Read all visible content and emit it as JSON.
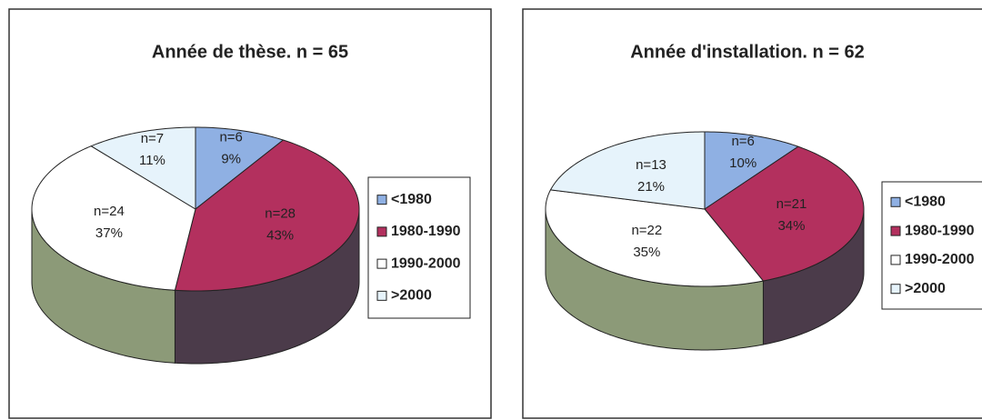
{
  "chart_data": [
    {
      "type": "pie",
      "title": "Année de thèse. n = 65",
      "categories": [
        "<1980",
        "1980-1990",
        "1990-2000",
        ">2000"
      ],
      "values": [
        9,
        43,
        37,
        11
      ],
      "value_labels": [
        "9%",
        "43%",
        "37%",
        "11%"
      ],
      "count_labels": [
        "n=6",
        "n=28",
        "n=24",
        "n=7"
      ],
      "colors": [
        "#8fb0e3",
        "#b3305e",
        "#ffffff",
        "#e6f3fb"
      ],
      "side_colors": [
        "#5e6f8e",
        "#4b3b4a",
        "#8c9a78",
        "#a8b4b8"
      ]
    },
    {
      "type": "pie",
      "title": "Année d'installation. n = 62",
      "categories": [
        "<1980",
        "1980-1990",
        "1990-2000",
        ">2000"
      ],
      "values": [
        10,
        34,
        35,
        21
      ],
      "value_labels": [
        "10%",
        "34%",
        "35%",
        "21%"
      ],
      "count_labels": [
        "n=6",
        "n=21",
        "n=22",
        "n=13"
      ],
      "colors": [
        "#8fb0e3",
        "#b3305e",
        "#ffffff",
        "#e6f3fb"
      ],
      "side_colors": [
        "#5e6f8e",
        "#4b3b4a",
        "#8c9a78",
        "#a8b4b8"
      ]
    }
  ]
}
